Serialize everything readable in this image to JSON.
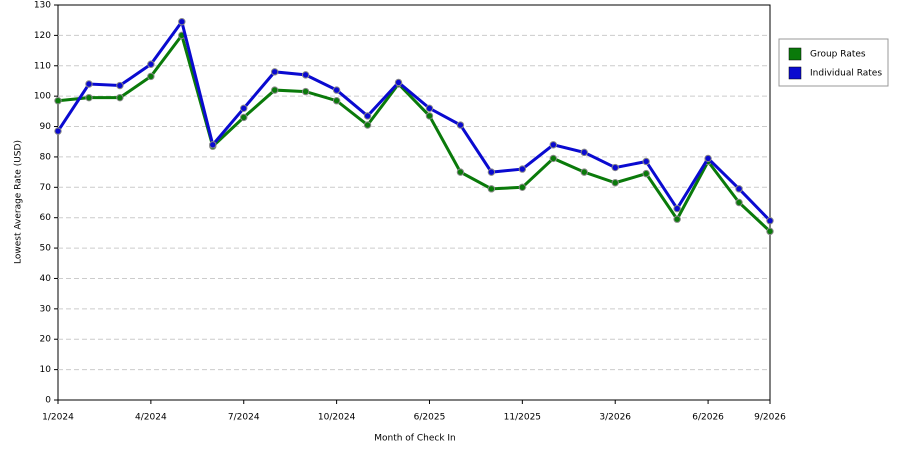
{
  "chart_data": {
    "type": "line",
    "x_label": "Month of Check In",
    "y_label": "Lowest Average Rate (USD)",
    "categories": [
      "1/2024",
      null,
      null,
      "4/2024",
      null,
      null,
      "7/2024",
      null,
      null,
      "10/2024",
      null,
      null,
      "6/2025",
      null,
      null,
      "11/2025",
      null,
      null,
      "3/2026",
      null,
      null,
      "6/2026",
      null,
      "9/2026"
    ],
    "series": [
      {
        "name": "Group Rates",
        "color": "#0a7a0a",
        "values": [
          98.5,
          99.5,
          99.5,
          106.5,
          120,
          83.5,
          93,
          102,
          101.5,
          98.5,
          90.5,
          104,
          93.5,
          75,
          69.5,
          70,
          79.5,
          75,
          71.5,
          74.5,
          59.5,
          78.5,
          65,
          55.5
        ]
      },
      {
        "name": "Individual Rates",
        "color": "#0a0ad0",
        "values": [
          88.5,
          104,
          103.5,
          110.5,
          124.5,
          84,
          96,
          108,
          107,
          102,
          93.5,
          104.5,
          96,
          90.5,
          75,
          76,
          84,
          81.5,
          76.5,
          78.5,
          63,
          79.5,
          69.5,
          59
        ]
      }
    ],
    "ylim": [
      0,
      130
    ],
    "yticks": [
      0,
      10,
      20,
      30,
      40,
      50,
      60,
      70,
      80,
      90,
      100,
      110,
      120,
      130
    ],
    "grid": true,
    "legend": "right"
  }
}
